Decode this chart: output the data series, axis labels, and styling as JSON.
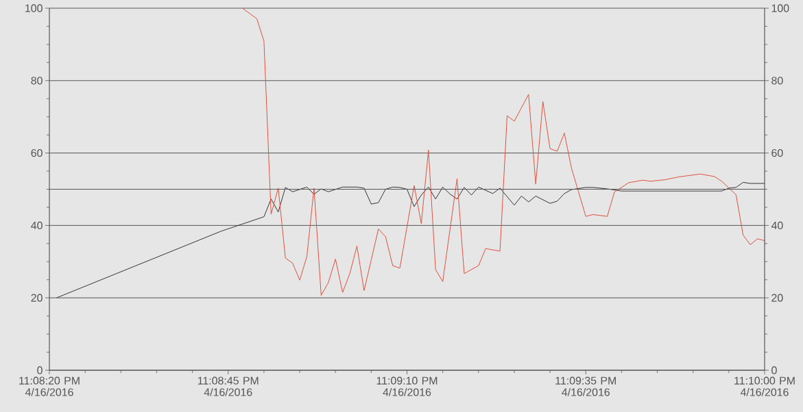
{
  "chart_data": {
    "type": "line",
    "xlim": [
      "2016-04-16T23:08:20",
      "2016-04-16T23:10:00"
    ],
    "xticks": [
      {
        "value": "2016-04-16T23:08:20",
        "label": "11:08:20 PM 4/16/2016"
      },
      {
        "value": "2016-04-16T23:08:45",
        "label": "11:08:45 PM 4/16/2016"
      },
      {
        "value": "2016-04-16T23:09:10",
        "label": "11:09:10 PM 4/16/2016"
      },
      {
        "value": "2016-04-16T23:09:35",
        "label": "11:09:35 PM 4/16/2016"
      },
      {
        "value": "2016-04-16T23:10:00",
        "label": "11:10:00 PM 4/16/2016"
      }
    ],
    "ylim": [
      0,
      100
    ],
    "yticks": [
      0,
      20,
      40,
      60,
      80,
      100
    ],
    "y2lim": [
      0,
      100
    ],
    "y2ticks": [
      0,
      20,
      40,
      60,
      80,
      100
    ],
    "grid": "y",
    "marker": "none",
    "line_style": "solid",
    "ref_lines": [
      {
        "axis": "y",
        "value": 50,
        "color": "#555555"
      }
    ],
    "series": [
      {
        "color": "#333333",
        "x": [
          "2016-04-16T23:08:21",
          "2016-04-16T23:08:44",
          "2016-04-16T23:08:50",
          "2016-04-16T23:08:51",
          "2016-04-16T23:08:52",
          "2016-04-16T23:08:53",
          "2016-04-16T23:08:54",
          "2016-04-16T23:08:56",
          "2016-04-16T23:08:57",
          "2016-04-16T23:08:58",
          "2016-04-16T23:08:59",
          "2016-04-16T23:09:01",
          "2016-04-16T23:09:03",
          "2016-04-16T23:09:04",
          "2016-04-16T23:09:05",
          "2016-04-16T23:09:06",
          "2016-04-16T23:09:07",
          "2016-04-16T23:09:08",
          "2016-04-16T23:09:09",
          "2016-04-16T23:09:10",
          "2016-04-16T23:09:11",
          "2016-04-16T23:09:12",
          "2016-04-16T23:09:13",
          "2016-04-16T23:09:14",
          "2016-04-16T23:09:15",
          "2016-04-16T23:09:16",
          "2016-04-16T23:09:17",
          "2016-04-16T23:09:18",
          "2016-04-16T23:09:19",
          "2016-04-16T23:09:20",
          "2016-04-16T23:09:22",
          "2016-04-16T23:09:23",
          "2016-04-16T23:09:25",
          "2016-04-16T23:09:26",
          "2016-04-16T23:09:27",
          "2016-04-16T23:09:28",
          "2016-04-16T23:09:30",
          "2016-04-16T23:09:31",
          "2016-04-16T23:09:32",
          "2016-04-16T23:09:33",
          "2016-04-16T23:09:35",
          "2016-04-16T23:09:36",
          "2016-04-16T23:09:38",
          "2016-04-16T23:09:40",
          "2016-04-16T23:09:54",
          "2016-04-16T23:09:55",
          "2016-04-16T23:09:56",
          "2016-04-16T23:09:57",
          "2016-04-16T23:09:58",
          "2016-04-16T23:10:00"
        ],
        "values": [
          20.0,
          38.4,
          42.4,
          47.3,
          43.7,
          50.5,
          49.3,
          50.6,
          48.6,
          50.1,
          49.3,
          50.6,
          50.6,
          50.3,
          45.9,
          46.3,
          50.0,
          50.6,
          50.5,
          50.0,
          45.2,
          48.4,
          50.6,
          47.3,
          50.6,
          48.7,
          47.3,
          50.5,
          48.4,
          50.6,
          48.8,
          50.3,
          45.6,
          48.1,
          46.5,
          48.1,
          46.1,
          46.7,
          48.8,
          49.9,
          50.5,
          50.5,
          50.1,
          49.5,
          49.5,
          50.3,
          50.5,
          51.9,
          51.6,
          51.6
        ]
      },
      {
        "color": "#e0503c",
        "x": [
          "2016-04-16T23:08:47",
          "2016-04-16T23:08:49",
          "2016-04-16T23:08:50",
          "2016-04-16T23:08:51",
          "2016-04-16T23:08:52",
          "2016-04-16T23:08:53",
          "2016-04-16T23:08:54",
          "2016-04-16T23:08:55",
          "2016-04-16T23:08:56",
          "2016-04-16T23:08:57",
          "2016-04-16T23:08:58",
          "2016-04-16T23:08:59",
          "2016-04-16T23:09:00",
          "2016-04-16T23:09:01",
          "2016-04-16T23:09:02",
          "2016-04-16T23:09:03",
          "2016-04-16T23:09:04",
          "2016-04-16T23:09:06",
          "2016-04-16T23:09:07",
          "2016-04-16T23:09:08",
          "2016-04-16T23:09:09",
          "2016-04-16T23:09:11",
          "2016-04-16T23:09:12",
          "2016-04-16T23:09:13",
          "2016-04-16T23:09:14",
          "2016-04-16T23:09:15",
          "2016-04-16T23:09:17",
          "2016-04-16T23:09:18",
          "2016-04-16T23:09:20",
          "2016-04-16T23:09:21",
          "2016-04-16T23:09:23",
          "2016-04-16T23:09:24",
          "2016-04-16T23:09:25",
          "2016-04-16T23:09:27",
          "2016-04-16T23:09:28",
          "2016-04-16T23:09:29",
          "2016-04-16T23:09:30",
          "2016-04-16T23:09:31",
          "2016-04-16T23:09:32",
          "2016-04-16T23:09:33",
          "2016-04-16T23:09:35",
          "2016-04-16T23:09:36",
          "2016-04-16T23:09:38",
          "2016-04-16T23:09:39",
          "2016-04-16T23:09:41",
          "2016-04-16T23:09:43",
          "2016-04-16T23:09:44",
          "2016-04-16T23:09:46",
          "2016-04-16T23:09:48",
          "2016-04-16T23:09:51",
          "2016-04-16T23:09:53",
          "2016-04-16T23:09:54",
          "2016-04-16T23:09:56",
          "2016-04-16T23:09:57",
          "2016-04-16T23:09:58",
          "2016-04-16T23:09:59",
          "2016-04-16T23:10:00"
        ],
        "values": [
          100,
          97.1,
          90.9,
          43.1,
          50.3,
          31.0,
          29.6,
          24.9,
          31.4,
          50.3,
          20.7,
          24.2,
          30.7,
          21.5,
          26.7,
          34.3,
          22.0,
          39.0,
          36.9,
          28.9,
          28.2,
          51.0,
          40.5,
          60.8,
          27.8,
          24.5,
          52.9,
          26.7,
          28.9,
          33.6,
          32.9,
          70.3,
          68.8,
          76.2,
          51.4,
          74.2,
          61.2,
          60.5,
          65.5,
          55.8,
          42.5,
          43.0,
          42.5,
          49.2,
          51.8,
          52.5,
          52.2,
          52.6,
          53.4,
          54.2,
          53.5,
          52.2,
          48.5,
          37.3,
          34.7,
          36.3,
          35.8
        ]
      }
    ]
  }
}
